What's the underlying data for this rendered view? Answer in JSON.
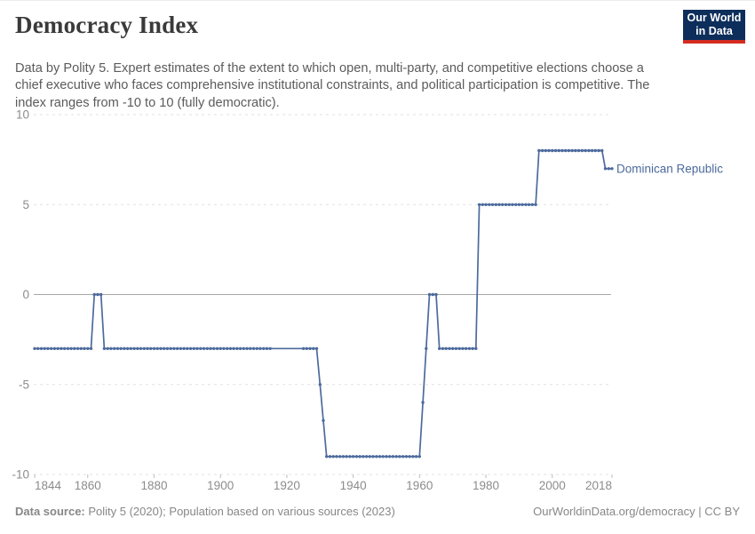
{
  "header": {
    "title": "Democracy Index",
    "logo": {
      "line1": "Our World",
      "line2": "in Data"
    }
  },
  "subtitle": "Data by Polity 5. Expert estimates of the extent to which open, multi-party, and competitive elections choose a chief executive who faces comprehensive institutional constraints, and political participation is competitive. The index ranges from -10 to 10 (fully democratic).",
  "footer": {
    "source_label": "Data source:",
    "source_text": " Polity 5 (2020); Population based on various sources (2023)",
    "credit": "OurWorldinData.org/democracy | CC BY"
  },
  "colors": {
    "line": "#4c6a9c",
    "entity_label": "#4c6a9c",
    "grid_dashed": "#e2e2e2",
    "zero_line": "#a6a6a6",
    "tick_text": "#8c8c8c",
    "tick_mark": "#bdbdbd",
    "logo_bg": "#0d2e5b",
    "logo_red": "#d42b21"
  },
  "chart_data": {
    "type": "line",
    "title": "Democracy Index",
    "xlabel": "",
    "ylabel": "",
    "xlim": [
      1844,
      2018
    ],
    "ylim": [
      -10,
      10
    ],
    "grid": true,
    "legend_position": "end-of-line",
    "x_ticks": [
      1844,
      1860,
      1880,
      1900,
      1920,
      1940,
      1960,
      1980,
      2000,
      2018
    ],
    "y_ticks": [
      10,
      5,
      0,
      -5,
      -10
    ],
    "series": [
      {
        "name": "Dominican Republic",
        "color": "#4c6a9c",
        "segments": [
          {
            "start": 1844,
            "end": 1861,
            "value": -3
          },
          {
            "start": 1862,
            "end": 1864,
            "value": 0
          },
          {
            "start": 1865,
            "end": 1929,
            "value": -3
          },
          {
            "start": 1930,
            "end": 1930,
            "value": -5
          },
          {
            "start": 1931,
            "end": 1931,
            "value": -7
          },
          {
            "start": 1932,
            "end": 1960,
            "value": -9
          },
          {
            "start": 1961,
            "end": 1961,
            "value": -6
          },
          {
            "start": 1962,
            "end": 1962,
            "value": -3
          },
          {
            "start": 1963,
            "end": 1965,
            "value": 0
          },
          {
            "start": 1966,
            "end": 1977,
            "value": -3
          },
          {
            "start": 1978,
            "end": 1995,
            "value": 5
          },
          {
            "start": 1996,
            "end": 2015,
            "value": 8
          },
          {
            "start": 2016,
            "end": 2018,
            "value": 7
          }
        ],
        "no_marker_years": [
          1915,
          1924
        ]
      }
    ]
  }
}
